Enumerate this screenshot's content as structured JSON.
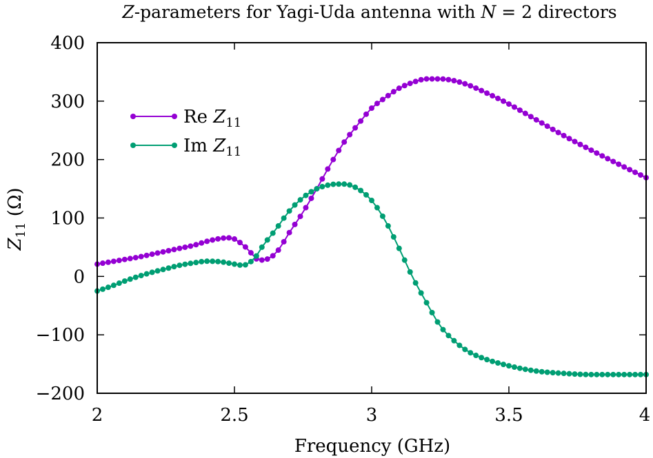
{
  "chart_data": {
    "type": "line",
    "title": {
      "prefix_italic": "Z",
      "middle": "-parameters for Yagi-Uda antenna with ",
      "var_italic": "N",
      "suffix": " = 2 directors"
    },
    "xlabel": "Frequency (GHz)",
    "ylabel": {
      "var": "Z",
      "sub": "11",
      "unit": " (Ω)"
    },
    "xlim": [
      2,
      4
    ],
    "ylim": [
      -200,
      400
    ],
    "x_ticks": [
      2,
      2.5,
      3,
      3.5,
      4
    ],
    "x_tick_labels": [
      "2",
      "2.5",
      "3",
      "3.5",
      "4"
    ],
    "y_ticks": [
      -200,
      -100,
      0,
      100,
      200,
      300,
      400
    ],
    "y_tick_labels": [
      "−200",
      "−100",
      "0",
      "100",
      "200",
      "300",
      "400"
    ],
    "grid": false,
    "legend_position": "top-left",
    "series": [
      {
        "name": "Re Z11",
        "legend_prefix": "Re ",
        "legend_var": "Z",
        "legend_sub": "11",
        "color": "#9400d3",
        "x": [
          2.0,
          2.05,
          2.1,
          2.15,
          2.2,
          2.25,
          2.3,
          2.35,
          2.4,
          2.45,
          2.48,
          2.5,
          2.52,
          2.55,
          2.58,
          2.6,
          2.63,
          2.66,
          2.7,
          2.75,
          2.8,
          2.85,
          2.9,
          2.95,
          3.0,
          3.05,
          3.1,
          3.15,
          3.2,
          3.25,
          3.3,
          3.35,
          3.4,
          3.5,
          3.6,
          3.7,
          3.8,
          3.9,
          4.0
        ],
        "y": [
          21,
          25,
          29,
          33,
          38,
          43,
          48,
          53,
          60,
          65,
          66,
          64,
          58,
          46,
          30,
          28,
          32,
          45,
          75,
          110,
          150,
          192,
          230,
          260,
          288,
          306,
          322,
          332,
          338,
          338,
          335,
          328,
          318,
          295,
          268,
          241,
          216,
          192,
          169
        ]
      },
      {
        "name": "Im Z11",
        "legend_prefix": "Im ",
        "legend_var": "Z",
        "legend_sub": "11",
        "color": "#009e73",
        "x": [
          2.0,
          2.05,
          2.1,
          2.15,
          2.2,
          2.25,
          2.3,
          2.35,
          2.4,
          2.45,
          2.5,
          2.53,
          2.55,
          2.58,
          2.6,
          2.65,
          2.7,
          2.75,
          2.8,
          2.85,
          2.88,
          2.9,
          2.95,
          3.0,
          3.05,
          3.1,
          3.15,
          3.2,
          3.25,
          3.3,
          3.35,
          3.4,
          3.5,
          3.6,
          3.7,
          3.8,
          3.9,
          4.0
        ],
        "y": [
          -25,
          -17,
          -8,
          0,
          7,
          13,
          19,
          23,
          26,
          25,
          21,
          19,
          22,
          35,
          50,
          80,
          112,
          135,
          150,
          157,
          158,
          158,
          150,
          130,
          95,
          48,
          -2,
          -45,
          -85,
          -110,
          -128,
          -139,
          -153,
          -162,
          -166,
          -168,
          -168,
          -168
        ]
      }
    ]
  },
  "colors": {
    "re": "#9400d3",
    "im": "#009e73",
    "axis": "#000000"
  }
}
